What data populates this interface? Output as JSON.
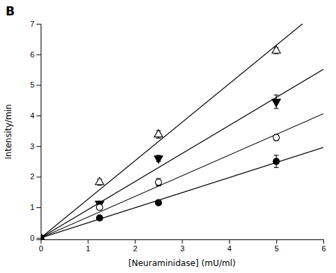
{
  "chart_data": {
    "type": "scatter",
    "annotations": [
      "B"
    ],
    "x_label": "[Neuraminidase] (mU/ml)",
    "y_label": "Intensity/min",
    "xlim": [
      0,
      6
    ],
    "ylim": [
      -0.05,
      7
    ],
    "xticks": [
      0,
      1,
      2,
      3,
      4,
      5,
      6
    ],
    "yticks": [
      0,
      1,
      2,
      3,
      4,
      5,
      6,
      7
    ],
    "x": [
      0,
      1.25,
      2.5,
      5.0
    ],
    "series": [
      {
        "color": "#000000",
        "marker": "triangle-up-open",
        "values": [
          0,
          1.82,
          3.38,
          6.12
        ],
        "errors": [
          0,
          0.1,
          0.12,
          0.1
        ],
        "fit_slope": 1.259429
      },
      {
        "color": "#000000",
        "marker": "triangle-down",
        "values": [
          0,
          1.12,
          2.6,
          4.45
        ],
        "errors": [
          0,
          0.08,
          0.1,
          0.22
        ],
        "fit_slope": 0.918857
      },
      {
        "color": "#000000",
        "marker": "circle-open",
        "values": [
          0,
          1.0,
          1.82,
          3.28
        ],
        "errors": [
          0,
          0.08,
          0.12,
          0.1
        ],
        "fit_slope": 0.676571
      },
      {
        "color": "#000000",
        "marker": "circle",
        "values": [
          0,
          0.65,
          1.15,
          2.5
        ],
        "errors": [
          0,
          0.07,
          0.07,
          0.2
        ],
        "fit_slope": 0.493333
      }
    ]
  }
}
